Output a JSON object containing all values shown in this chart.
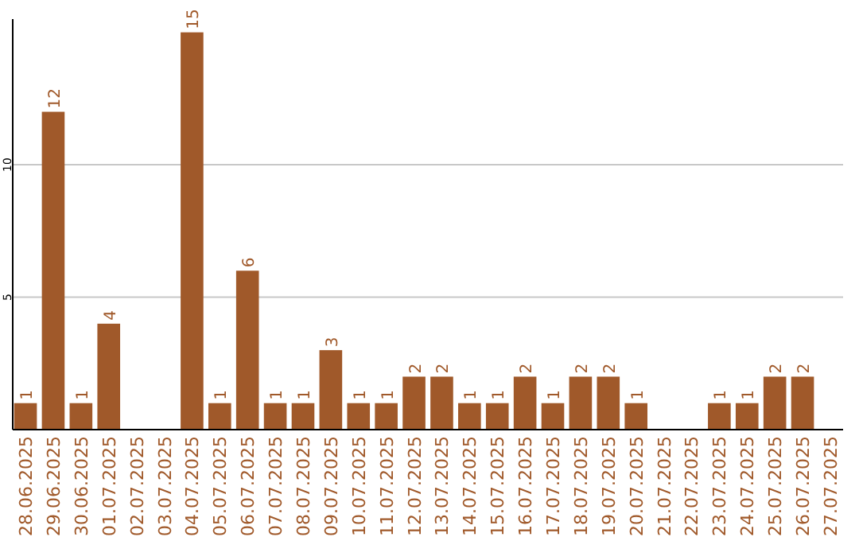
{
  "chart_data": {
    "type": "bar",
    "categories": [
      "28.06.2025",
      "29.06.2025",
      "30.06.2025",
      "01.07.2025",
      "02.07.2025",
      "03.07.2025",
      "04.07.2025",
      "05.07.2025",
      "06.07.2025",
      "07.07.2025",
      "08.07.2025",
      "09.07.2025",
      "10.07.2025",
      "11.07.2025",
      "12.07.2025",
      "13.07.2025",
      "14.07.2025",
      "15.07.2025",
      "16.07.2025",
      "17.07.2025",
      "18.07.2025",
      "19.07.2025",
      "20.07.2025",
      "21.07.2025",
      "22.07.2025",
      "23.07.2025",
      "24.07.2025",
      "25.07.2025",
      "26.07.2025",
      "27.07.2025"
    ],
    "values": [
      1,
      12,
      1,
      4,
      0,
      0,
      15,
      1,
      6,
      1,
      1,
      3,
      1,
      1,
      2,
      2,
      1,
      1,
      2,
      1,
      2,
      2,
      1,
      0,
      0,
      1,
      1,
      2,
      2,
      0
    ],
    "value_labels": [
      "1",
      "12",
      "1",
      "4",
      null,
      null,
      "15",
      "1",
      "6",
      "1",
      "1",
      "3",
      "1",
      "1",
      "2",
      "2",
      "1",
      "1",
      "2",
      "1",
      "2",
      "2",
      "1",
      null,
      null,
      "1",
      "1",
      "2",
      "2",
      null
    ],
    "color": "#a0592a",
    "ylim": [
      0,
      15.5
    ],
    "yticks": [
      5,
      10
    ],
    "grid": "y"
  }
}
